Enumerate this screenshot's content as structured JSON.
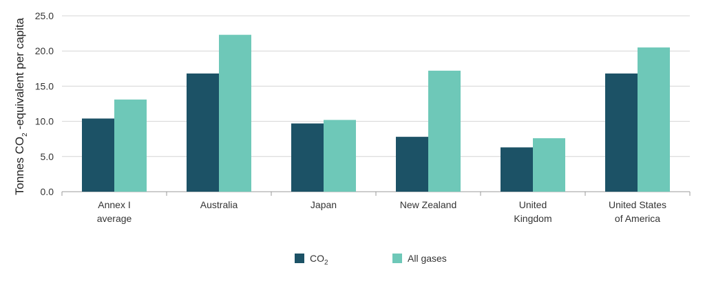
{
  "chart_data": {
    "type": "bar",
    "title": "",
    "xlabel": "",
    "ylabel": {
      "prefix": "Tonnes CO",
      "subscript": "2",
      "suffix": " -equivalent per capita"
    },
    "ylim": [
      0,
      25
    ],
    "yticks": [
      "0.0",
      "5.0",
      "10.0",
      "15.0",
      "20.0",
      "25.0"
    ],
    "grid": true,
    "legend_position": "bottom",
    "categories": [
      [
        "Annex I",
        "average"
      ],
      [
        "Australia"
      ],
      [
        "Japan"
      ],
      [
        "New Zealand"
      ],
      [
        "United",
        "Kingdom"
      ],
      [
        "United States",
        "of America"
      ]
    ],
    "series": [
      {
        "name": "CO",
        "name_subscript": "2",
        "color": "#1c5266",
        "values": [
          10.4,
          16.8,
          9.7,
          7.8,
          6.3,
          16.8
        ]
      },
      {
        "name": "All gases",
        "name_subscript": "",
        "color": "#6ec8b8",
        "values": [
          13.1,
          22.3,
          10.2,
          17.2,
          7.6,
          20.5
        ]
      }
    ]
  }
}
